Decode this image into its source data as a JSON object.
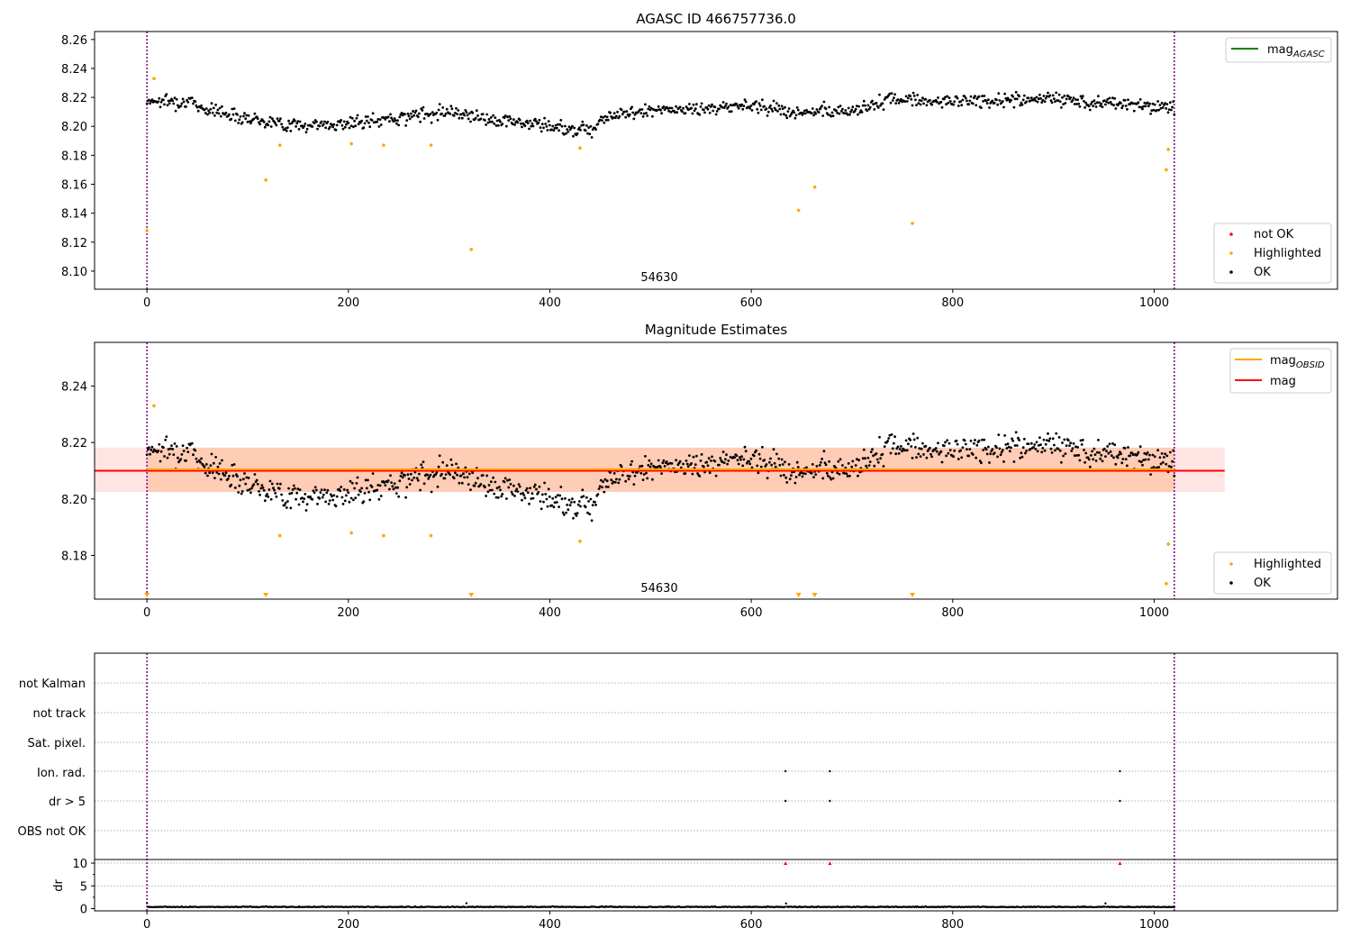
{
  "chart_data": [
    {
      "type": "scatter",
      "title": "AGASC ID 466757736.0",
      "annotation": "54630",
      "xlim": [
        -52,
        1182
      ],
      "ylim": [
        8.0875,
        8.2655
      ],
      "xticks": [
        0,
        200,
        400,
        600,
        800,
        1000
      ],
      "xtick_labels": [
        "0",
        "200",
        "400",
        "600",
        "800",
        "1000"
      ],
      "yticks": [
        8.1,
        8.12,
        8.14,
        8.16,
        8.18,
        8.2,
        8.22,
        8.24,
        8.26
      ],
      "ytick_labels": [
        "8.10",
        "8.12",
        "8.14",
        "8.16",
        "8.18",
        "8.20",
        "8.22",
        "8.24",
        "8.26"
      ],
      "vlines": [
        0,
        1020
      ],
      "vline_color": "#800080",
      "legend_lines": [
        {
          "label": "mag",
          "subscript": "AGASC",
          "color": "#008000"
        }
      ],
      "legend_lines_position": "top-right",
      "legend_markers": [
        {
          "label": "not OK",
          "color": "#ff0000"
        },
        {
          "label": "Highlighted",
          "color": "#ffa500"
        },
        {
          "label": "OK",
          "color": "#000000"
        }
      ],
      "legend_markers_position": "lower-right",
      "series": [
        {
          "name": "OK",
          "color": "#000000",
          "description": "continuous time series sampled at about 1000 points",
          "trend": [
            [
              0,
              8.218
            ],
            [
              40,
              8.217
            ],
            [
              60,
              8.212
            ],
            [
              100,
              8.206
            ],
            [
              140,
              8.201
            ],
            [
              180,
              8.201
            ],
            [
              220,
              8.203
            ],
            [
              260,
              8.207
            ],
            [
              300,
              8.211
            ],
            [
              340,
              8.205
            ],
            [
              380,
              8.202
            ],
            [
              420,
              8.198
            ],
            [
              445,
              8.199
            ],
            [
              450,
              8.206
            ],
            [
              500,
              8.211
            ],
            [
              560,
              8.212
            ],
            [
              600,
              8.215
            ],
            [
              650,
              8.209
            ],
            [
              700,
              8.211
            ],
            [
              740,
              8.219
            ],
            [
              800,
              8.217
            ],
            [
              900,
              8.219
            ],
            [
              960,
              8.216
            ],
            [
              1020,
              8.213
            ]
          ],
          "spread": 0.0045
        },
        {
          "name": "Highlighted",
          "color": "#ffa500",
          "points": [
            [
              0,
              8.128
            ],
            [
              7,
              8.233
            ],
            [
              118,
              8.163
            ],
            [
              132,
              8.187
            ],
            [
              203,
              8.188
            ],
            [
              235,
              8.187
            ],
            [
              282,
              8.187
            ],
            [
              322,
              8.115
            ],
            [
              430,
              8.185
            ],
            [
              647,
              8.142
            ],
            [
              663,
              8.158
            ],
            [
              760,
              8.133
            ],
            [
              1012,
              8.17
            ],
            [
              1014,
              8.184
            ]
          ]
        }
      ]
    },
    {
      "type": "scatter",
      "title": "Magnitude Estimates",
      "annotation": "54630",
      "xlim": [
        -52,
        1182
      ],
      "ylim": [
        8.1645,
        8.2555
      ],
      "xticks": [
        0,
        200,
        400,
        600,
        800,
        1000
      ],
      "xtick_labels": [
        "0",
        "200",
        "400",
        "600",
        "800",
        "1000"
      ],
      "yticks": [
        8.18,
        8.2,
        8.22,
        8.24
      ],
      "ytick_labels": [
        "8.18",
        "8.20",
        "8.22",
        "8.24"
      ],
      "vlines": [
        0,
        1020
      ],
      "vline_color": "#800080",
      "mag": 8.21,
      "mag_band": [
        8.2025,
        8.2182
      ],
      "mag_obsid": 8.2105,
      "obsid_band": [
        8.2025,
        8.2182
      ],
      "legend_lines": [
        {
          "label": "mag",
          "subscript": "OBSID",
          "color": "#ffa500"
        },
        {
          "label": "mag",
          "subscript": "",
          "color": "#ff0000"
        }
      ],
      "legend_lines_position": "top-right",
      "legend_markers": [
        {
          "label": "Highlighted",
          "color": "#ffa500"
        },
        {
          "label": "OK",
          "color": "#000000"
        }
      ],
      "legend_markers_position": "lower-right",
      "lower_limit_markers_x": [
        0,
        118,
        322,
        647,
        663,
        760
      ],
      "series": [
        {
          "name": "OK",
          "color": "#000000"
        },
        {
          "name": "Highlighted",
          "color": "#ffa500",
          "points": [
            [
              7,
              8.233
            ],
            [
              132,
              8.187
            ],
            [
              203,
              8.188
            ],
            [
              235,
              8.187
            ],
            [
              282,
              8.187
            ],
            [
              430,
              8.185
            ],
            [
              1012,
              8.17
            ],
            [
              1014,
              8.184
            ]
          ]
        }
      ]
    },
    {
      "type": "scatter",
      "title": "",
      "xlim": [
        -52,
        1182
      ],
      "xticks": [
        0,
        200,
        400,
        600,
        800,
        1000
      ],
      "xtick_labels": [
        "0",
        "200",
        "400",
        "600",
        "800",
        "1000"
      ],
      "vlines": [
        0,
        1020
      ],
      "flag_rows": [
        "not Kalman",
        "not track",
        "Sat. pixel.",
        "Ion. rad.",
        "dr > 5",
        "OBS not OK"
      ],
      "flag_points": [
        {
          "row": "Ion. rad.",
          "x": [
            634,
            678,
            966
          ]
        },
        {
          "row": "dr > 5",
          "x": [
            634,
            678,
            966
          ]
        }
      ],
      "dr": {
        "ylabel": "dr",
        "yticks": [
          0,
          5,
          10
        ],
        "ytick_labels": [
          "0",
          "5",
          "10"
        ],
        "ylim": [
          -0.5,
          10.8
        ],
        "clipped_markers_x": [
          634,
          678,
          966
        ],
        "clipped_marker_color": "#ff0000",
        "typical_value": 0.3
      }
    }
  ]
}
